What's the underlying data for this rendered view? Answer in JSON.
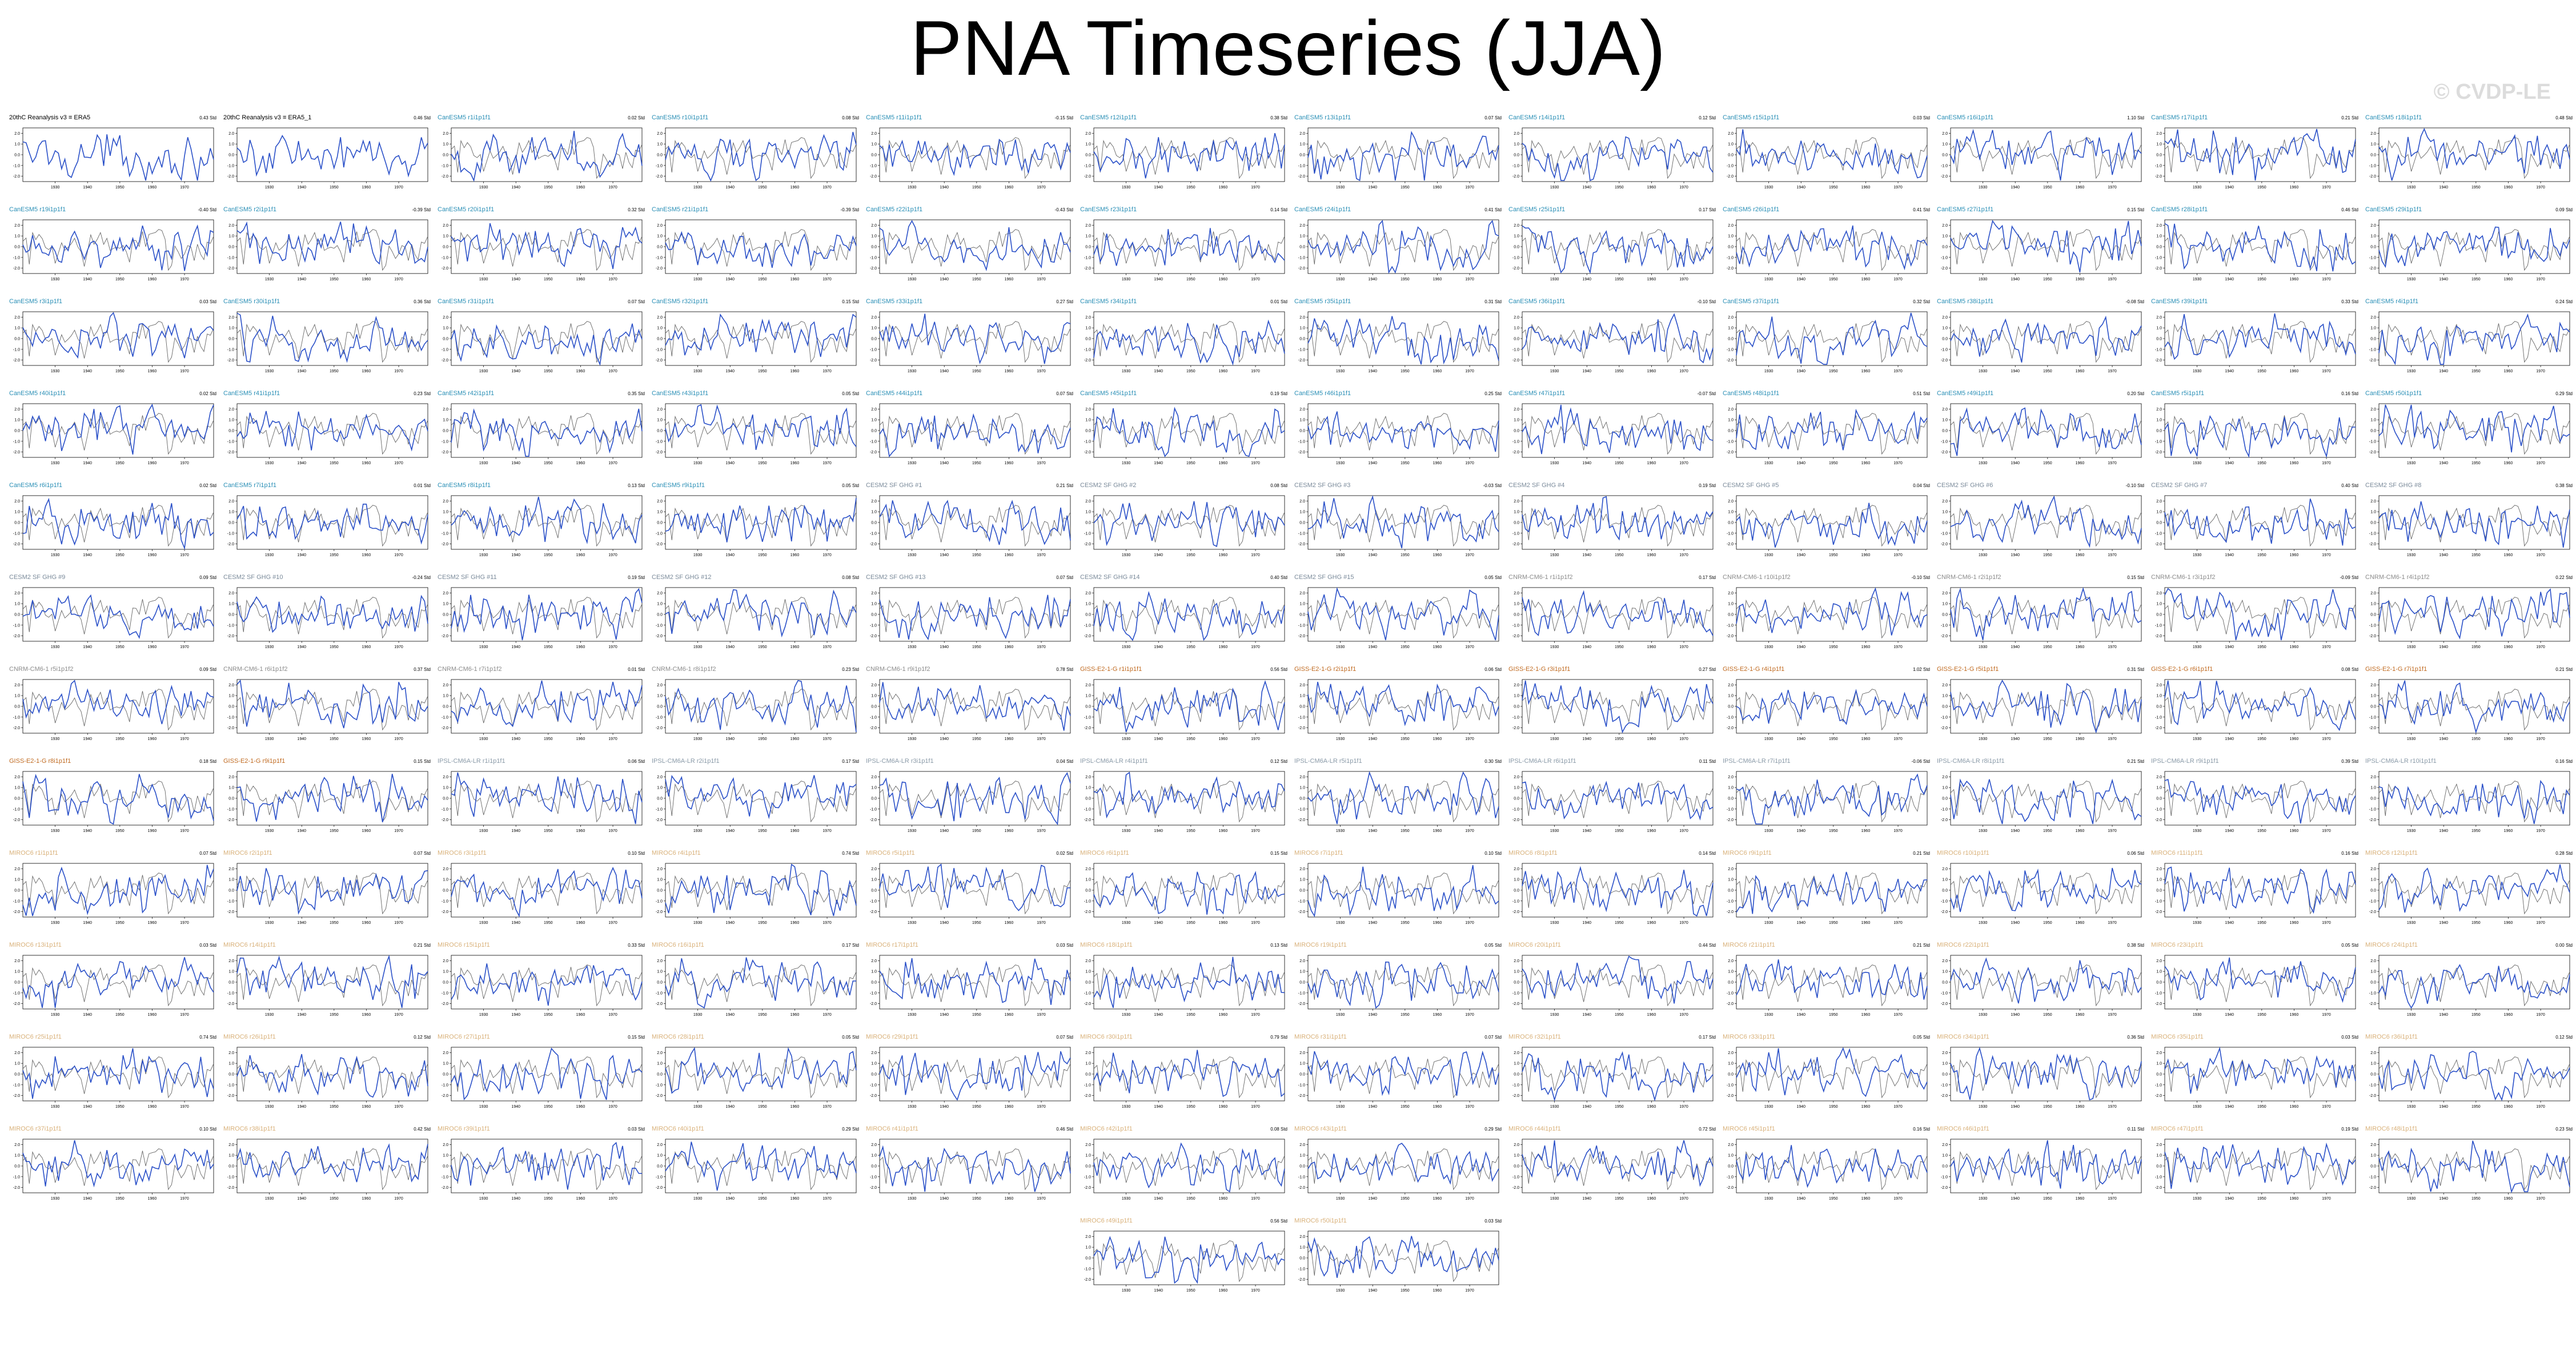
{
  "title": "PNA Timeseries (JJA)",
  "watermark": "© CVDP-LE",
  "colors": {
    "series_main": "#2a50c8",
    "series_ref": "#666666",
    "label_obs": "#000000",
    "label_cesm": "#2a8fb6",
    "label_cesm2": "#7a8a9a",
    "label_cnrm": "#8c8c8c",
    "label_giss": "#c06a20",
    "label_ipsl": "#8a9aa8",
    "label_miroc": "#d9b17a"
  },
  "chart_data": {
    "type": "line",
    "layout": "small-multiples grid, 12 columns",
    "x_ticks": [
      "1930",
      "1940",
      "1950",
      "1960",
      "1970"
    ],
    "y_ticks": [
      "2.0",
      "1.0",
      "0.0",
      "-1.0",
      "-2.0"
    ],
    "xlim": [
      1920,
      1979
    ],
    "ylim": [
      -2.5,
      2.5
    ],
    "grid": false,
    "panels": [
      {
        "label": "20thC Reanalysis v3 ≡ ERA5",
        "trend": "0.43 Std",
        "cat": "obs"
      },
      {
        "label": "20thC Reanalysis v3 ≡ ERA5_1",
        "trend": "0.46 Std",
        "cat": "obs"
      },
      {
        "label": "CanESM5 r1i1p1f1",
        "trend": "0.02 Std",
        "cat": "cesm"
      },
      {
        "label": "CanESM5 r10i1p1f1",
        "trend": "0.08 Std",
        "cat": "cesm"
      },
      {
        "label": "CanESM5 r11i1p1f1",
        "trend": "-0.15 Std",
        "cat": "cesm"
      },
      {
        "label": "CanESM5 r12i1p1f1",
        "trend": "0.38 Std",
        "cat": "cesm"
      },
      {
        "label": "CanESM5 r13i1p1f1",
        "trend": "0.07 Std",
        "cat": "cesm"
      },
      {
        "label": "CanESM5 r14i1p1f1",
        "trend": "0.12 Std",
        "cat": "cesm"
      },
      {
        "label": "CanESM5 r15i1p1f1",
        "trend": "0.03 Std",
        "cat": "cesm"
      },
      {
        "label": "CanESM5 r16i1p1f1",
        "trend": "1.10 Std",
        "cat": "cesm"
      },
      {
        "label": "CanESM5 r17i1p1f1",
        "trend": "0.21 Std",
        "cat": "cesm"
      },
      {
        "label": "CanESM5 r18i1p1f1",
        "trend": "0.48 Std",
        "cat": "cesm"
      },
      {
        "label": "CanESM5 r19i1p1f1",
        "trend": "-0.40 Std",
        "cat": "cesm"
      },
      {
        "label": "CanESM5 r2i1p1f1",
        "trend": "-0.39 Std",
        "cat": "cesm"
      },
      {
        "label": "CanESM5 r20i1p1f1",
        "trend": "0.32 Std",
        "cat": "cesm"
      },
      {
        "label": "CanESM5 r21i1p1f1",
        "trend": "-0.39 Std",
        "cat": "cesm"
      },
      {
        "label": "CanESM5 r22i1p1f1",
        "trend": "-0.43 Std",
        "cat": "cesm"
      },
      {
        "label": "CanESM5 r23i1p1f1",
        "trend": "0.14 Std",
        "cat": "cesm"
      },
      {
        "label": "CanESM5 r24i1p1f1",
        "trend": "0.41 Std",
        "cat": "cesm"
      },
      {
        "label": "CanESM5 r25i1p1f1",
        "trend": "0.17 Std",
        "cat": "cesm"
      },
      {
        "label": "CanESM5 r26i1p1f1",
        "trend": "0.41 Std",
        "cat": "cesm"
      },
      {
        "label": "CanESM5 r27i1p1f1",
        "trend": "0.15 Std",
        "cat": "cesm"
      },
      {
        "label": "CanESM5 r28i1p1f1",
        "trend": "0.46 Std",
        "cat": "cesm"
      },
      {
        "label": "CanESM5 r29i1p1f1",
        "trend": "0.09 Std",
        "cat": "cesm"
      },
      {
        "label": "CanESM5 r3i1p1f1",
        "trend": "0.03 Std",
        "cat": "cesm"
      },
      {
        "label": "CanESM5 r30i1p1f1",
        "trend": "0.36 Std",
        "cat": "cesm"
      },
      {
        "label": "CanESM5 r31i1p1f1",
        "trend": "0.07 Std",
        "cat": "cesm"
      },
      {
        "label": "CanESM5 r32i1p1f1",
        "trend": "0.15 Std",
        "cat": "cesm"
      },
      {
        "label": "CanESM5 r33i1p1f1",
        "trend": "0.27 Std",
        "cat": "cesm"
      },
      {
        "label": "CanESM5 r34i1p1f1",
        "trend": "0.01 Std",
        "cat": "cesm"
      },
      {
        "label": "CanESM5 r35i1p1f1",
        "trend": "0.31 Std",
        "cat": "cesm"
      },
      {
        "label": "CanESM5 r36i1p1f1",
        "trend": "-0.10 Std",
        "cat": "cesm"
      },
      {
        "label": "CanESM5 r37i1p1f1",
        "trend": "0.32 Std",
        "cat": "cesm"
      },
      {
        "label": "CanESM5 r38i1p1f1",
        "trend": "-0.08 Std",
        "cat": "cesm"
      },
      {
        "label": "CanESM5 r39i1p1f1",
        "trend": "0.33 Std",
        "cat": "cesm"
      },
      {
        "label": "CanESM5 r4i1p1f1",
        "trend": "0.24 Std",
        "cat": "cesm"
      },
      {
        "label": "CanESM5 r40i1p1f1",
        "trend": "0.02 Std",
        "cat": "cesm"
      },
      {
        "label": "CanESM5 r41i1p1f1",
        "trend": "0.23 Std",
        "cat": "cesm"
      },
      {
        "label": "CanESM5 r42i1p1f1",
        "trend": "0.35 Std",
        "cat": "cesm"
      },
      {
        "label": "CanESM5 r43i1p1f1",
        "trend": "0.05 Std",
        "cat": "cesm"
      },
      {
        "label": "CanESM5 r44i1p1f1",
        "trend": "0.07 Std",
        "cat": "cesm"
      },
      {
        "label": "CanESM5 r45i1p1f1",
        "trend": "0.19 Std",
        "cat": "cesm"
      },
      {
        "label": "CanESM5 r46i1p1f1",
        "trend": "0.25 Std",
        "cat": "cesm"
      },
      {
        "label": "CanESM5 r47i1p1f1",
        "trend": "-0.07 Std",
        "cat": "cesm"
      },
      {
        "label": "CanESM5 r48i1p1f1",
        "trend": "0.51 Std",
        "cat": "cesm"
      },
      {
        "label": "CanESM5 r49i1p1f1",
        "trend": "0.20 Std",
        "cat": "cesm"
      },
      {
        "label": "CanESM5 r5i1p1f1",
        "trend": "0.16 Std",
        "cat": "cesm"
      },
      {
        "label": "CanESM5 r50i1p1f1",
        "trend": "0.29 Std",
        "cat": "cesm"
      },
      {
        "label": "CanESM5 r6i1p1f1",
        "trend": "0.02 Std",
        "cat": "cesm"
      },
      {
        "label": "CanESM5 r7i1p1f1",
        "trend": "0.01 Std",
        "cat": "cesm"
      },
      {
        "label": "CanESM5 r8i1p1f1",
        "trend": "0.13 Std",
        "cat": "cesm"
      },
      {
        "label": "CanESM5 r9i1p1f1",
        "trend": "0.05 Std",
        "cat": "cesm"
      },
      {
        "label": "CESM2 SF GHG #1",
        "trend": "0.21 Std",
        "cat": "cesm2"
      },
      {
        "label": "CESM2 SF GHG #2",
        "trend": "0.08 Std",
        "cat": "cesm2"
      },
      {
        "label": "CESM2 SF GHG #3",
        "trend": "-0.03 Std",
        "cat": "cesm2"
      },
      {
        "label": "CESM2 SF GHG #4",
        "trend": "0.19 Std",
        "cat": "cesm2"
      },
      {
        "label": "CESM2 SF GHG #5",
        "trend": "0.04 Std",
        "cat": "cesm2"
      },
      {
        "label": "CESM2 SF GHG #6",
        "trend": "-0.10 Std",
        "cat": "cesm2"
      },
      {
        "label": "CESM2 SF GHG #7",
        "trend": "0.40 Std",
        "cat": "cesm2"
      },
      {
        "label": "CESM2 SF GHG #8",
        "trend": "0.38 Std",
        "cat": "cesm2"
      },
      {
        "label": "CESM2 SF GHG #9",
        "trend": "0.09 Std",
        "cat": "cesm2"
      },
      {
        "label": "CESM2 SF GHG #10",
        "trend": "-0.24 Std",
        "cat": "cesm2"
      },
      {
        "label": "CESM2 SF GHG #11",
        "trend": "0.19 Std",
        "cat": "cesm2"
      },
      {
        "label": "CESM2 SF GHG #12",
        "trend": "0.08 Std",
        "cat": "cesm2"
      },
      {
        "label": "CESM2 SF GHG #13",
        "trend": "0.07 Std",
        "cat": "cesm2"
      },
      {
        "label": "CESM2 SF GHG #14",
        "trend": "0.40 Std",
        "cat": "cesm2"
      },
      {
        "label": "CESM2 SF GHG #15",
        "trend": "0.05 Std",
        "cat": "cesm2"
      },
      {
        "label": "CNRM-CM6-1 r1i1p1f2",
        "trend": "0.17 Std",
        "cat": "cnrm"
      },
      {
        "label": "CNRM-CM6-1 r10i1p1f2",
        "trend": "-0.10 Std",
        "cat": "cnrm"
      },
      {
        "label": "CNRM-CM6-1 r2i1p1f2",
        "trend": "0.15 Std",
        "cat": "cnrm"
      },
      {
        "label": "CNRM-CM6-1 r3i1p1f2",
        "trend": "-0.09 Std",
        "cat": "cnrm"
      },
      {
        "label": "CNRM-CM6-1 r4i1p1f2",
        "trend": "0.22 Std",
        "cat": "cnrm"
      },
      {
        "label": "CNRM-CM6-1 r5i1p1f2",
        "trend": "0.09 Std",
        "cat": "cnrm"
      },
      {
        "label": "CNRM-CM6-1 r6i1p1f2",
        "trend": "0.37 Std",
        "cat": "cnrm"
      },
      {
        "label": "CNRM-CM6-1 r7i1p1f2",
        "trend": "0.01 Std",
        "cat": "cnrm"
      },
      {
        "label": "CNRM-CM6-1 r8i1p1f2",
        "trend": "0.23 Std",
        "cat": "cnrm"
      },
      {
        "label": "CNRM-CM6-1 r9i1p1f2",
        "trend": "0.78 Std",
        "cat": "cnrm"
      },
      {
        "label": "GISS-E2-1-G r1i1p1f1",
        "trend": "0.56 Std",
        "cat": "giss"
      },
      {
        "label": "GISS-E2-1-G r2i1p1f1",
        "trend": "0.06 Std",
        "cat": "giss"
      },
      {
        "label": "GISS-E2-1-G r3i1p1f1",
        "trend": "0.27 Std",
        "cat": "giss"
      },
      {
        "label": "GISS-E2-1-G r4i1p1f1",
        "trend": "1.02 Std",
        "cat": "giss"
      },
      {
        "label": "GISS-E2-1-G r5i1p1f1",
        "trend": "0.31 Std",
        "cat": "giss"
      },
      {
        "label": "GISS-E2-1-G r6i1p1f1",
        "trend": "0.08 Std",
        "cat": "giss"
      },
      {
        "label": "GISS-E2-1-G r7i1p1f1",
        "trend": "0.21 Std",
        "cat": "giss"
      },
      {
        "label": "GISS-E2-1-G r8i1p1f1",
        "trend": "0.18 Std",
        "cat": "giss"
      },
      {
        "label": "GISS-E2-1-G r9i1p1f1",
        "trend": "0.15 Std",
        "cat": "giss"
      },
      {
        "label": "IPSL-CM6A-LR r1i1p1f1",
        "trend": "0.06 Std",
        "cat": "ipsl"
      },
      {
        "label": "IPSL-CM6A-LR r2i1p1f1",
        "trend": "0.17 Std",
        "cat": "ipsl"
      },
      {
        "label": "IPSL-CM6A-LR r3i1p1f1",
        "trend": "0.04 Std",
        "cat": "ipsl"
      },
      {
        "label": "IPSL-CM6A-LR r4i1p1f1",
        "trend": "0.12 Std",
        "cat": "ipsl"
      },
      {
        "label": "IPSL-CM6A-LR r5i1p1f1",
        "trend": "0.30 Std",
        "cat": "ipsl"
      },
      {
        "label": "IPSL-CM6A-LR r6i1p1f1",
        "trend": "0.11 Std",
        "cat": "ipsl"
      },
      {
        "label": "IPSL-CM6A-LR r7i1p1f1",
        "trend": "-0.06 Std",
        "cat": "ipsl"
      },
      {
        "label": "IPSL-CM6A-LR r8i1p1f1",
        "trend": "0.21 Std",
        "cat": "ipsl"
      },
      {
        "label": "IPSL-CM6A-LR r9i1p1f1",
        "trend": "0.39 Std",
        "cat": "ipsl"
      },
      {
        "label": "IPSL-CM6A-LR r10i1p1f1",
        "trend": "0.16 Std",
        "cat": "ipsl"
      },
      {
        "label": "MIROC6 r1i1p1f1",
        "trend": "0.07 Std",
        "cat": "miroc"
      },
      {
        "label": "MIROC6 r2i1p1f1",
        "trend": "0.07 Std",
        "cat": "miroc"
      },
      {
        "label": "MIROC6 r3i1p1f1",
        "trend": "0.10 Std",
        "cat": "miroc"
      },
      {
        "label": "MIROC6 r4i1p1f1",
        "trend": "0.74 Std",
        "cat": "miroc"
      },
      {
        "label": "MIROC6 r5i1p1f1",
        "trend": "0.02 Std",
        "cat": "miroc"
      },
      {
        "label": "MIROC6 r6i1p1f1",
        "trend": "0.15 Std",
        "cat": "miroc"
      },
      {
        "label": "MIROC6 r7i1p1f1",
        "trend": "0.10 Std",
        "cat": "miroc"
      },
      {
        "label": "MIROC6 r8i1p1f1",
        "trend": "0.14 Std",
        "cat": "miroc"
      },
      {
        "label": "MIROC6 r9i1p1f1",
        "trend": "0.21 Std",
        "cat": "miroc"
      },
      {
        "label": "MIROC6 r10i1p1f1",
        "trend": "0.06 Std",
        "cat": "miroc"
      },
      {
        "label": "MIROC6 r11i1p1f1",
        "trend": "0.16 Std",
        "cat": "miroc"
      },
      {
        "label": "MIROC6 r12i1p1f1",
        "trend": "0.28 Std",
        "cat": "miroc"
      },
      {
        "label": "MIROC6 r13i1p1f1",
        "trend": "0.03 Std",
        "cat": "miroc"
      },
      {
        "label": "MIROC6 r14i1p1f1",
        "trend": "0.21 Std",
        "cat": "miroc"
      },
      {
        "label": "MIROC6 r15i1p1f1",
        "trend": "0.33 Std",
        "cat": "miroc"
      },
      {
        "label": "MIROC6 r16i1p1f1",
        "trend": "0.17 Std",
        "cat": "miroc"
      },
      {
        "label": "MIROC6 r17i1p1f1",
        "trend": "0.03 Std",
        "cat": "miroc"
      },
      {
        "label": "MIROC6 r18i1p1f1",
        "trend": "0.13 Std",
        "cat": "miroc"
      },
      {
        "label": "MIROC6 r19i1p1f1",
        "trend": "0.05 Std",
        "cat": "miroc"
      },
      {
        "label": "MIROC6 r20i1p1f1",
        "trend": "0.44 Std",
        "cat": "miroc"
      },
      {
        "label": "MIROC6 r21i1p1f1",
        "trend": "0.21 Std",
        "cat": "miroc"
      },
      {
        "label": "MIROC6 r22i1p1f1",
        "trend": "0.38 Std",
        "cat": "miroc"
      },
      {
        "label": "MIROC6 r23i1p1f1",
        "trend": "0.05 Std",
        "cat": "miroc"
      },
      {
        "label": "MIROC6 r24i1p1f1",
        "trend": "0.00 Std",
        "cat": "miroc"
      },
      {
        "label": "MIROC6 r25i1p1f1",
        "trend": "0.74 Std",
        "cat": "miroc"
      },
      {
        "label": "MIROC6 r26i1p1f1",
        "trend": "0.12 Std",
        "cat": "miroc"
      },
      {
        "label": "MIROC6 r27i1p1f1",
        "trend": "0.15 Std",
        "cat": "miroc"
      },
      {
        "label": "MIROC6 r28i1p1f1",
        "trend": "0.05 Std",
        "cat": "miroc"
      },
      {
        "label": "MIROC6 r29i1p1f1",
        "trend": "0.07 Std",
        "cat": "miroc"
      },
      {
        "label": "MIROC6 r30i1p1f1",
        "trend": "0.79 Std",
        "cat": "miroc"
      },
      {
        "label": "MIROC6 r31i1p1f1",
        "trend": "0.07 Std",
        "cat": "miroc"
      },
      {
        "label": "MIROC6 r32i1p1f1",
        "trend": "0.17 Std",
        "cat": "miroc"
      },
      {
        "label": "MIROC6 r33i1p1f1",
        "trend": "0.05 Std",
        "cat": "miroc"
      },
      {
        "label": "MIROC6 r34i1p1f1",
        "trend": "0.36 Std",
        "cat": "miroc"
      },
      {
        "label": "MIROC6 r35i1p1f1",
        "trend": "0.03 Std",
        "cat": "miroc"
      },
      {
        "label": "MIROC6 r36i1p1f1",
        "trend": "0.12 Std",
        "cat": "miroc"
      },
      {
        "label": "MIROC6 r37i1p1f1",
        "trend": "0.10 Std",
        "cat": "miroc"
      },
      {
        "label": "MIROC6 r38i1p1f1",
        "trend": "0.42 Std",
        "cat": "miroc"
      },
      {
        "label": "MIROC6 r39i1p1f1",
        "trend": "0.03 Std",
        "cat": "miroc"
      },
      {
        "label": "MIROC6 r40i1p1f1",
        "trend": "0.29 Std",
        "cat": "miroc"
      },
      {
        "label": "MIROC6 r41i1p1f1",
        "trend": "0.46 Std",
        "cat": "miroc"
      },
      {
        "label": "MIROC6 r42i1p1f1",
        "trend": "0.08 Std",
        "cat": "miroc"
      },
      {
        "label": "MIROC6 r43i1p1f1",
        "trend": "0.29 Std",
        "cat": "miroc"
      },
      {
        "label": "MIROC6 r44i1p1f1",
        "trend": "0.72 Std",
        "cat": "miroc"
      },
      {
        "label": "MIROC6 r45i1p1f1",
        "trend": "0.16 Std",
        "cat": "miroc"
      },
      {
        "label": "MIROC6 r46i1p1f1",
        "trend": "0.11 Std",
        "cat": "miroc"
      },
      {
        "label": "MIROC6 r47i1p1f1",
        "trend": "0.19 Std",
        "cat": "miroc"
      },
      {
        "label": "MIROC6 r48i1p1f1",
        "trend": "0.23 Std",
        "cat": "miroc"
      },
      {
        "label": "MIROC6 r49i1p1f1",
        "trend": "0.56 Std",
        "cat": "miroc"
      },
      {
        "label": "MIROC6 r50i1p1f1",
        "trend": "0.03 Std",
        "cat": "miroc"
      }
    ]
  }
}
